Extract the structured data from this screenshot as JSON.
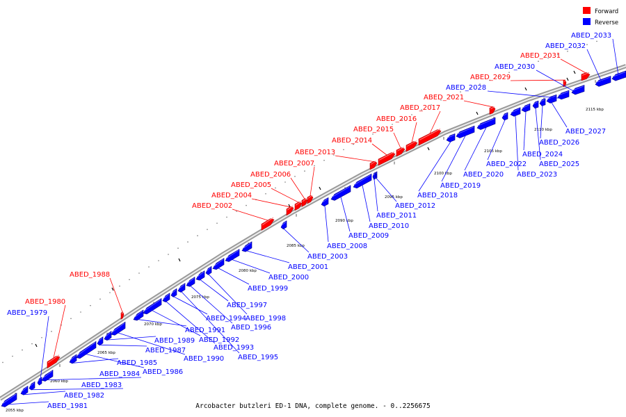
{
  "caption": "Arcobacter butzleri ED-1 DNA, complete genome. - 0..2256675",
  "legend": [
    {
      "label": "Forward",
      "color": "#ff0000"
    },
    {
      "label": "Reverse",
      "color": "#0000ff"
    }
  ],
  "colors": {
    "forward": "#ff0000",
    "reverse": "#0000ff",
    "backbone": "#888888"
  },
  "ticks": [
    "2055 kbp",
    "2060 kbp",
    "2065 kbp",
    "2070 kbp",
    "2075 kbp",
    "2080 kbp",
    "2085 kbp",
    "2090 kbp",
    "2095 kbp",
    "2100 kbp",
    "2105 kbp",
    "2110 kbp",
    "2115 kbp"
  ],
  "genes": [
    {
      "label": "ABED_1979",
      "strand": "reverse"
    },
    {
      "label": "ABED_1980",
      "strand": "forward"
    },
    {
      "label": "ABED_1981",
      "strand": "reverse"
    },
    {
      "label": "ABED_1982",
      "strand": "reverse"
    },
    {
      "label": "ABED_1983",
      "strand": "reverse"
    },
    {
      "label": "ABED_1984",
      "strand": "reverse"
    },
    {
      "label": "ABED_1985",
      "strand": "reverse"
    },
    {
      "label": "ABED_1986",
      "strand": "reverse"
    },
    {
      "label": "ABED_1987",
      "strand": "reverse"
    },
    {
      "label": "ABED_1988",
      "strand": "forward"
    },
    {
      "label": "ABED_1989",
      "strand": "reverse"
    },
    {
      "label": "ABED_1990",
      "strand": "reverse"
    },
    {
      "label": "ABED_1991",
      "strand": "reverse"
    },
    {
      "label": "ABED_1992",
      "strand": "reverse"
    },
    {
      "label": "ABED_1993",
      "strand": "reverse"
    },
    {
      "label": "ABED_1994",
      "strand": "reverse"
    },
    {
      "label": "ABED_1995",
      "strand": "reverse"
    },
    {
      "label": "ABED_1996",
      "strand": "reverse"
    },
    {
      "label": "ABED_1997",
      "strand": "reverse"
    },
    {
      "label": "ABED_1998",
      "strand": "reverse"
    },
    {
      "label": "ABED_1999",
      "strand": "reverse"
    },
    {
      "label": "ABED_2000",
      "strand": "reverse"
    },
    {
      "label": "ABED_2001",
      "strand": "reverse"
    },
    {
      "label": "ABED_2002",
      "strand": "forward"
    },
    {
      "label": "ABED_2003",
      "strand": "reverse"
    },
    {
      "label": "ABED_2004",
      "strand": "forward"
    },
    {
      "label": "ABED_2005",
      "strand": "forward"
    },
    {
      "label": "ABED_2006",
      "strand": "forward"
    },
    {
      "label": "ABED_2007",
      "strand": "forward"
    },
    {
      "label": "ABED_2008",
      "strand": "reverse"
    },
    {
      "label": "ABED_2009",
      "strand": "reverse"
    },
    {
      "label": "ABED_2010",
      "strand": "reverse"
    },
    {
      "label": "ABED_2011",
      "strand": "reverse"
    },
    {
      "label": "ABED_2012",
      "strand": "reverse"
    },
    {
      "label": "ABED_2013",
      "strand": "forward"
    },
    {
      "label": "ABED_2014",
      "strand": "forward"
    },
    {
      "label": "ABED_2015",
      "strand": "forward"
    },
    {
      "label": "ABED_2016",
      "strand": "forward"
    },
    {
      "label": "ABED_2017",
      "strand": "forward"
    },
    {
      "label": "ABED_2018",
      "strand": "reverse"
    },
    {
      "label": "ABED_2019",
      "strand": "reverse"
    },
    {
      "label": "ABED_2020",
      "strand": "reverse"
    },
    {
      "label": "ABED_2021",
      "strand": "forward"
    },
    {
      "label": "ABED_2022",
      "strand": "reverse"
    },
    {
      "label": "ABED_2023",
      "strand": "reverse"
    },
    {
      "label": "ABED_2024",
      "strand": "reverse"
    },
    {
      "label": "ABED_2025",
      "strand": "reverse"
    },
    {
      "label": "ABED_2026",
      "strand": "reverse"
    },
    {
      "label": "ABED_2027",
      "strand": "reverse"
    },
    {
      "label": "ABED_2028",
      "strand": "reverse"
    },
    {
      "label": "ABED_2029",
      "strand": "forward"
    },
    {
      "label": "ABED_2030",
      "strand": "reverse"
    },
    {
      "label": "ABED_2031",
      "strand": "forward"
    },
    {
      "label": "ABED_2032",
      "strand": "reverse"
    },
    {
      "label": "ABED_2033",
      "strand": "reverse"
    }
  ]
}
